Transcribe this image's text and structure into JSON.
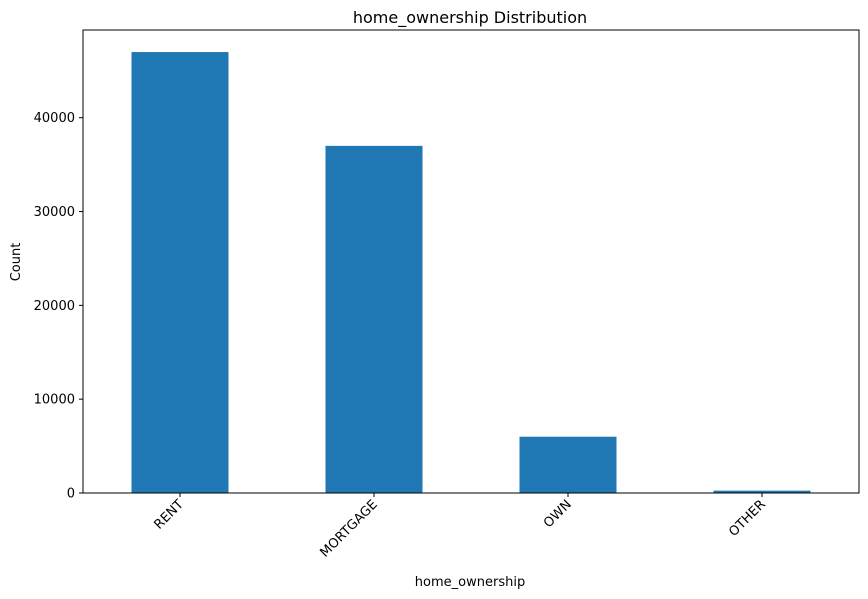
{
  "chart_data": {
    "type": "bar",
    "title": "home_ownership Distribution",
    "xlabel": "home_ownership",
    "ylabel": "Count",
    "categories": [
      "RENT",
      "MORTGAGE",
      "OWN",
      "OTHER"
    ],
    "values": [
      47000,
      37000,
      6000,
      250
    ],
    "ylim": [
      0,
      49350
    ],
    "yticks": [
      0,
      10000,
      20000,
      30000,
      40000
    ],
    "ytick_labels": [
      "0",
      "10000",
      "20000",
      "30000",
      "40000"
    ],
    "bar_color": "#1f77b4",
    "grid": false,
    "legend": "none"
  }
}
